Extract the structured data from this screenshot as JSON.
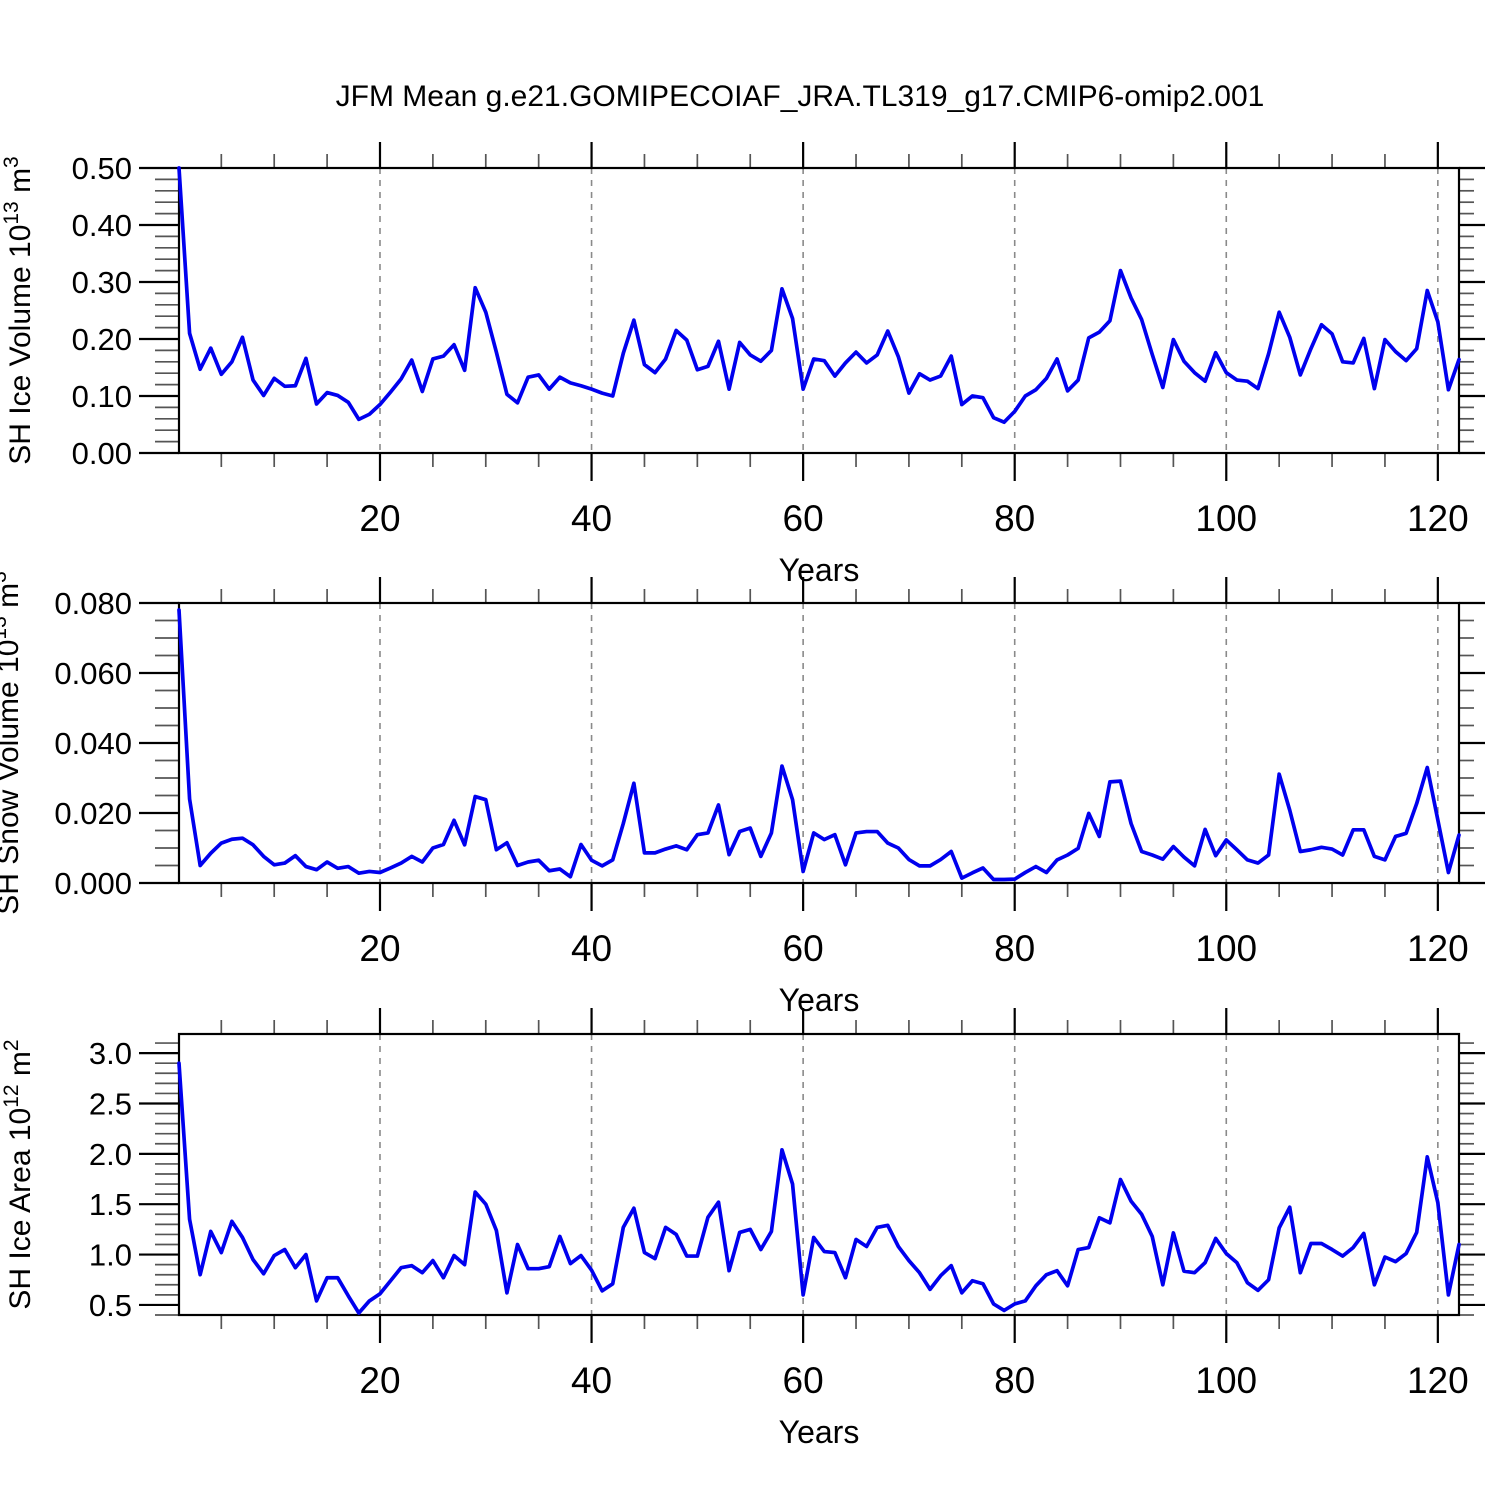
{
  "title": "JFM Mean g.e21.GOMIPECOIAF_JRA.TL319_g17.CMIP6-omip2.001",
  "colors": {
    "line": "#0000EE",
    "frame": "#000000",
    "grid_dashed": "#8A8A8A",
    "minor_tick": "#555555",
    "text": "#000000"
  },
  "chart_data": [
    {
      "type": "line",
      "name": "sh-ice-volume",
      "ylabel": "SH Ice Volume 10^13 m^3",
      "xlabel": "Years",
      "x_start": 1,
      "x_end": 122,
      "xticks": [
        20,
        40,
        60,
        80,
        100,
        120
      ],
      "xtick_labels": [
        "20",
        "40",
        "60",
        "80",
        "100",
        "120"
      ],
      "x_minor_step": 5,
      "ylim": [
        0,
        0.5
      ],
      "yticks": [
        0,
        0.1,
        0.2,
        0.3,
        0.4,
        0.5
      ],
      "ytick_labels": [
        "0.00",
        "0.10",
        "0.20",
        "0.30",
        "0.40",
        "0.50"
      ],
      "y_minor_step": 0.02,
      "grid": "vertical-dashed-at-major-x",
      "legend": "none",
      "values": [
        0.5,
        0.21,
        0.147,
        0.184,
        0.138,
        0.16,
        0.203,
        0.128,
        0.101,
        0.131,
        0.117,
        0.118,
        0.166,
        0.086,
        0.106,
        0.101,
        0.089,
        0.059,
        0.068,
        0.085,
        0.107,
        0.13,
        0.163,
        0.108,
        0.165,
        0.17,
        0.19,
        0.145,
        0.29,
        0.247,
        0.177,
        0.103,
        0.088,
        0.133,
        0.137,
        0.112,
        0.133,
        0.123,
        0.118,
        0.112,
        0.105,
        0.1,
        0.175,
        0.233,
        0.155,
        0.141,
        0.165,
        0.215,
        0.198,
        0.146,
        0.152,
        0.196,
        0.112,
        0.194,
        0.172,
        0.161,
        0.18,
        0.288,
        0.236,
        0.112,
        0.165,
        0.162,
        0.135,
        0.158,
        0.177,
        0.158,
        0.172,
        0.214,
        0.169,
        0.105,
        0.139,
        0.128,
        0.135,
        0.17,
        0.085,
        0.1,
        0.097,
        0.062,
        0.054,
        0.073,
        0.1,
        0.111,
        0.131,
        0.165,
        0.109,
        0.128,
        0.202,
        0.212,
        0.232,
        0.32,
        0.272,
        0.234,
        0.173,
        0.115,
        0.199,
        0.161,
        0.141,
        0.126,
        0.176,
        0.141,
        0.128,
        0.126,
        0.113,
        0.174,
        0.247,
        0.203,
        0.137,
        0.183,
        0.225,
        0.209,
        0.16,
        0.158,
        0.201,
        0.113,
        0.199,
        0.178,
        0.162,
        0.183,
        0.285,
        0.23,
        0.111,
        0.164
      ]
    },
    {
      "type": "line",
      "name": "sh-snow-volume",
      "ylabel": "SH Snow Volume 10^13 m^3",
      "xlabel": "Years",
      "x_start": 1,
      "x_end": 122,
      "xticks": [
        20,
        40,
        60,
        80,
        100,
        120
      ],
      "xtick_labels": [
        "20",
        "40",
        "60",
        "80",
        "100",
        "120"
      ],
      "x_minor_step": 5,
      "ylim": [
        0,
        0.08
      ],
      "yticks": [
        0,
        0.02,
        0.04,
        0.06,
        0.08
      ],
      "ytick_labels": [
        "0.000",
        "0.020",
        "0.040",
        "0.060",
        "0.080"
      ],
      "y_minor_step": 0.005,
      "grid": "vertical-dashed-at-major-x",
      "legend": "none",
      "values": [
        0.078,
        0.024,
        0.005,
        0.0085,
        0.0114,
        0.0125,
        0.0128,
        0.0109,
        0.0076,
        0.0052,
        0.0057,
        0.0078,
        0.0047,
        0.0038,
        0.006,
        0.0042,
        0.0047,
        0.0028,
        0.0033,
        0.003,
        0.0043,
        0.0057,
        0.0076,
        0.006,
        0.01,
        0.011,
        0.0179,
        0.0109,
        0.0247,
        0.0238,
        0.0095,
        0.0115,
        0.005,
        0.006,
        0.0065,
        0.0035,
        0.004,
        0.0018,
        0.011,
        0.0065,
        0.0049,
        0.0066,
        0.017,
        0.0285,
        0.0086,
        0.0086,
        0.0097,
        0.0106,
        0.0095,
        0.0138,
        0.0143,
        0.0223,
        0.0081,
        0.0147,
        0.0157,
        0.0076,
        0.0143,
        0.0334,
        0.0238,
        0.0033,
        0.0143,
        0.0124,
        0.0138,
        0.0052,
        0.0143,
        0.0147,
        0.0147,
        0.0114,
        0.01,
        0.0067,
        0.0049,
        0.0049,
        0.0067,
        0.009,
        0.0014,
        0.0029,
        0.0043,
        0.001,
        0.001,
        0.0011,
        0.003,
        0.0047,
        0.003,
        0.0066,
        0.008,
        0.0099,
        0.0199,
        0.0133,
        0.0289,
        0.0291,
        0.017,
        0.009,
        0.008,
        0.0068,
        0.0104,
        0.0074,
        0.0049,
        0.0153,
        0.0078,
        0.0123,
        0.0095,
        0.0066,
        0.0057,
        0.008,
        0.0311,
        0.0208,
        0.009,
        0.0095,
        0.0102,
        0.0097,
        0.008,
        0.0152,
        0.0152,
        0.0076,
        0.0066,
        0.0133,
        0.0142,
        0.0227,
        0.033,
        0.018,
        0.003,
        0.0137
      ]
    },
    {
      "type": "line",
      "name": "sh-ice-area",
      "ylabel": "SH Ice Area 10^12 m^2",
      "xlabel": "Years",
      "x_start": 1,
      "x_end": 122,
      "xticks": [
        20,
        40,
        60,
        80,
        100,
        120
      ],
      "xtick_labels": [
        "20",
        "40",
        "60",
        "80",
        "100",
        "120"
      ],
      "x_minor_step": 5,
      "ylim": [
        0.4,
        3.19
      ],
      "yticks": [
        0.5,
        1.0,
        1.5,
        2.0,
        2.5,
        3.0
      ],
      "ytick_labels": [
        "0.5",
        "1.0",
        "1.5",
        "2.0",
        "2.5",
        "3.0"
      ],
      "y_minor_step": 0.1,
      "grid": "vertical-dashed-at-major-x",
      "legend": "none",
      "values": [
        2.9,
        1.35,
        0.8,
        1.23,
        1.02,
        1.33,
        1.17,
        0.95,
        0.81,
        0.99,
        1.05,
        0.87,
        1.0,
        0.54,
        0.77,
        0.77,
        0.59,
        0.42,
        0.54,
        0.61,
        0.74,
        0.87,
        0.89,
        0.82,
        0.94,
        0.77,
        0.99,
        0.9,
        1.62,
        1.5,
        1.24,
        0.62,
        1.1,
        0.86,
        0.86,
        0.88,
        1.18,
        0.91,
        0.99,
        0.845,
        0.64,
        0.71,
        1.27,
        1.46,
        1.02,
        0.96,
        1.27,
        1.2,
        0.985,
        0.985,
        1.37,
        1.52,
        0.84,
        1.22,
        1.25,
        1.05,
        1.23,
        2.04,
        1.7,
        0.6,
        1.17,
        1.03,
        1.02,
        0.77,
        1.15,
        1.08,
        1.27,
        1.29,
        1.08,
        0.94,
        0.82,
        0.655,
        0.79,
        0.89,
        0.62,
        0.74,
        0.71,
        0.51,
        0.445,
        0.51,
        0.54,
        0.69,
        0.8,
        0.84,
        0.69,
        1.05,
        1.07,
        1.365,
        1.315,
        1.745,
        1.53,
        1.4,
        1.18,
        0.7,
        1.215,
        0.835,
        0.82,
        0.92,
        1.16,
        1.01,
        0.92,
        0.72,
        0.645,
        0.75,
        1.265,
        1.47,
        0.82,
        1.11,
        1.11,
        1.05,
        0.985,
        1.07,
        1.21,
        0.7,
        0.975,
        0.93,
        1.01,
        1.22,
        1.97,
        1.515,
        0.6,
        1.1
      ]
    }
  ]
}
